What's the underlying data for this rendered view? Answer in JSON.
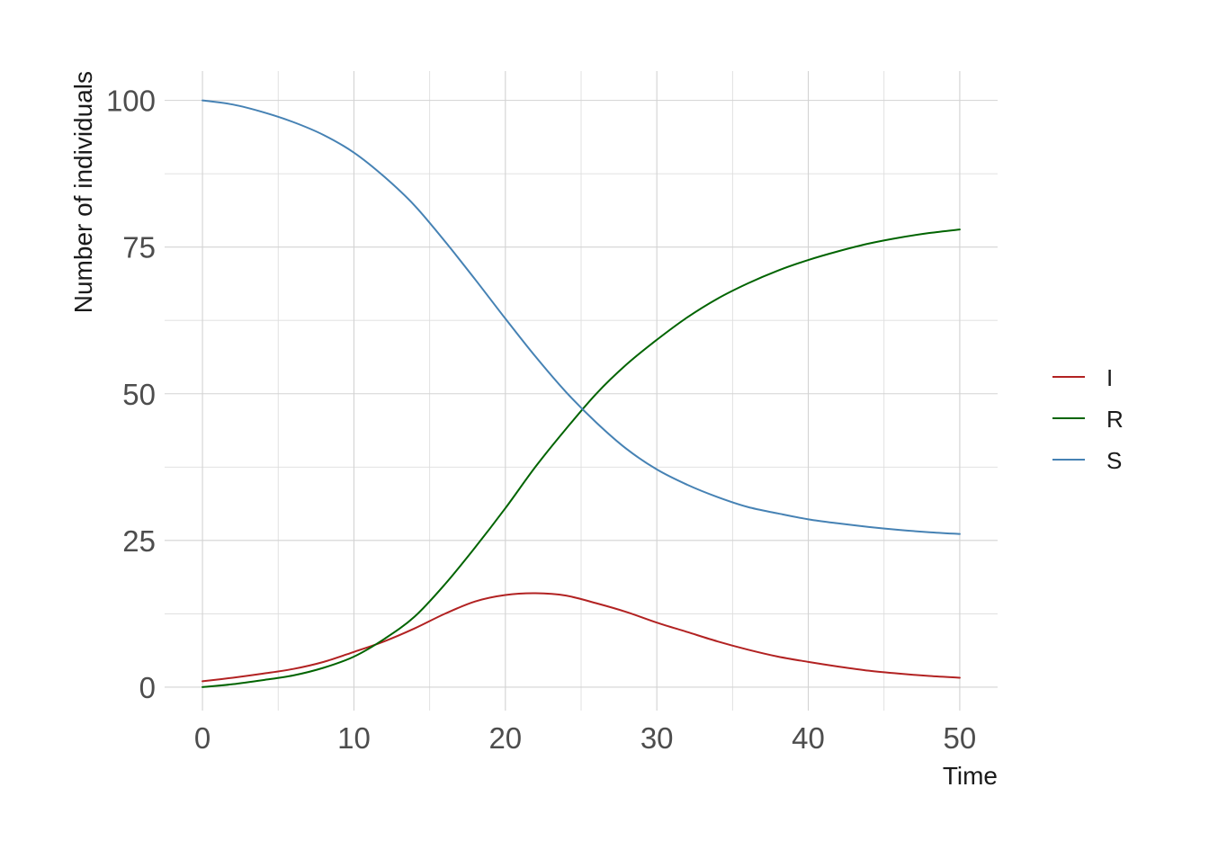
{
  "chart_data": {
    "type": "line",
    "title": "",
    "xlabel": "Time",
    "ylabel": "Number of individuals",
    "xlim": [
      -2.5,
      52.5
    ],
    "ylim": [
      -4,
      105
    ],
    "x_ticks": [
      0,
      10,
      20,
      30,
      40,
      50
    ],
    "x_tick_labels": [
      "0",
      "10",
      "20",
      "30",
      "40",
      "50"
    ],
    "y_ticks": [
      0,
      25,
      50,
      75,
      100
    ],
    "y_tick_labels": [
      "0",
      "25",
      "50",
      "75",
      "100"
    ],
    "grid": true,
    "legend_position": "right",
    "x": [
      0,
      2,
      4,
      6,
      8,
      10,
      12,
      14,
      16,
      18,
      20,
      22,
      24,
      26,
      28,
      30,
      32,
      34,
      36,
      38,
      40,
      42,
      44,
      46,
      48,
      50
    ],
    "series": [
      {
        "name": "I",
        "color": "#b22222",
        "values": [
          1,
          1.6,
          2.3,
          3.1,
          4.3,
          6.0,
          7.8,
          10.0,
          12.5,
          14.6,
          15.7,
          16.0,
          15.6,
          14.3,
          12.8,
          11.0,
          9.4,
          7.8,
          6.4,
          5.2,
          4.3,
          3.5,
          2.8,
          2.3,
          1.9,
          1.6
        ]
      },
      {
        "name": "R",
        "color": "#006400",
        "values": [
          0,
          0.5,
          1.2,
          2.0,
          3.3,
          5.2,
          8.2,
          12.0,
          17.5,
          23.8,
          30.5,
          37.6,
          44.0,
          50.0,
          55.0,
          59.2,
          63.0,
          66.2,
          68.8,
          71.0,
          72.8,
          74.3,
          75.6,
          76.6,
          77.4,
          78.0
        ]
      },
      {
        "name": "S",
        "color": "#4682b4",
        "values": [
          100,
          99.3,
          98.0,
          96.3,
          94.1,
          91.1,
          87.0,
          82.1,
          76.0,
          69.5,
          62.8,
          56.3,
          50.3,
          45.1,
          40.6,
          37.1,
          34.5,
          32.4,
          30.7,
          29.6,
          28.6,
          27.9,
          27.3,
          26.8,
          26.4,
          26.1
        ]
      }
    ]
  }
}
